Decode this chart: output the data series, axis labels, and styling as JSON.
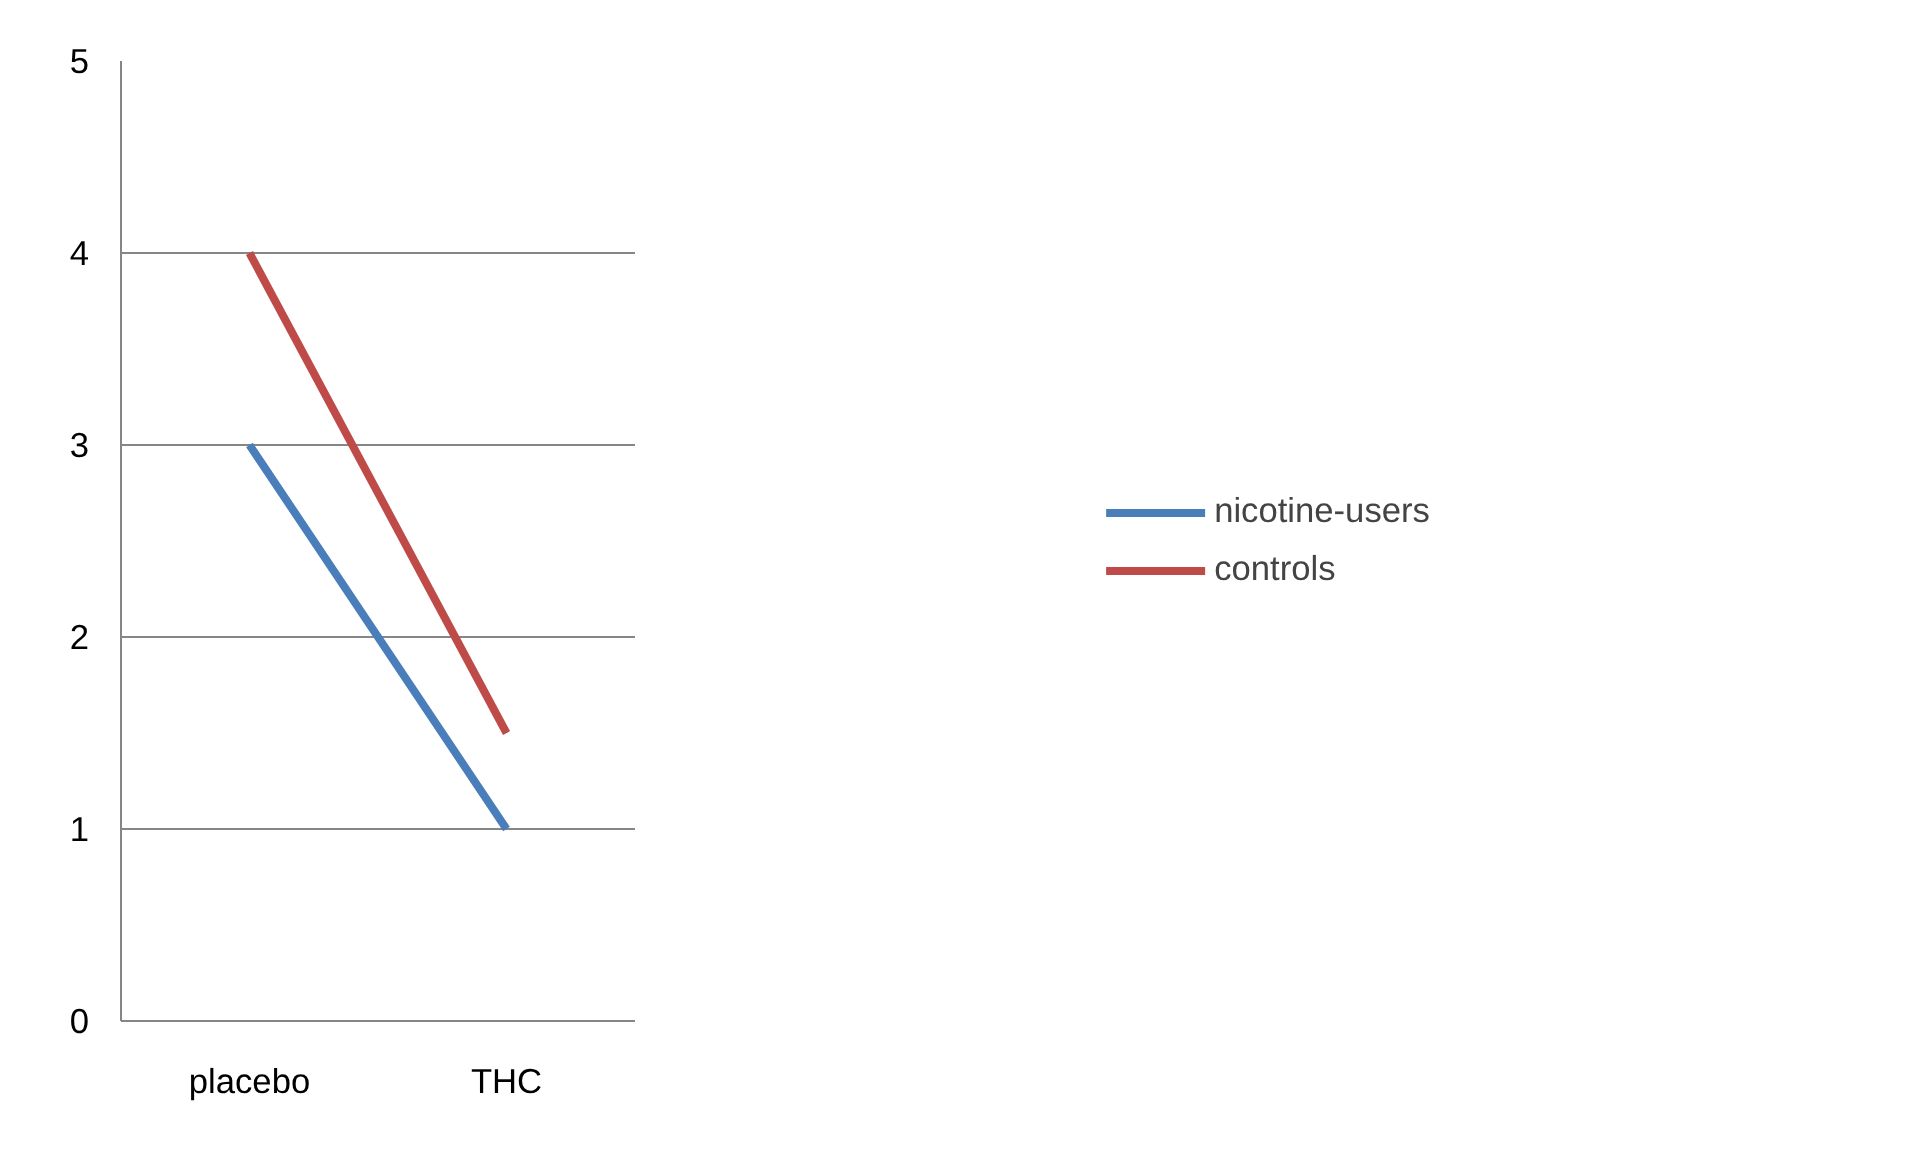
{
  "chart_data": {
    "type": "line",
    "categories": [
      "placebo",
      "THC"
    ],
    "series": [
      {
        "name": "nicotine-users",
        "color": "#4a7ebb",
        "values": [
          3,
          1
        ]
      },
      {
        "name": "controls",
        "color": "#be4b48",
        "values": [
          4,
          1.5
        ]
      }
    ],
    "ylim": [
      0,
      5
    ],
    "yticks": [
      0,
      1,
      2,
      3,
      4,
      5
    ],
    "grid": "y",
    "legend": "right",
    "marker": "none",
    "line_style": "solid"
  }
}
